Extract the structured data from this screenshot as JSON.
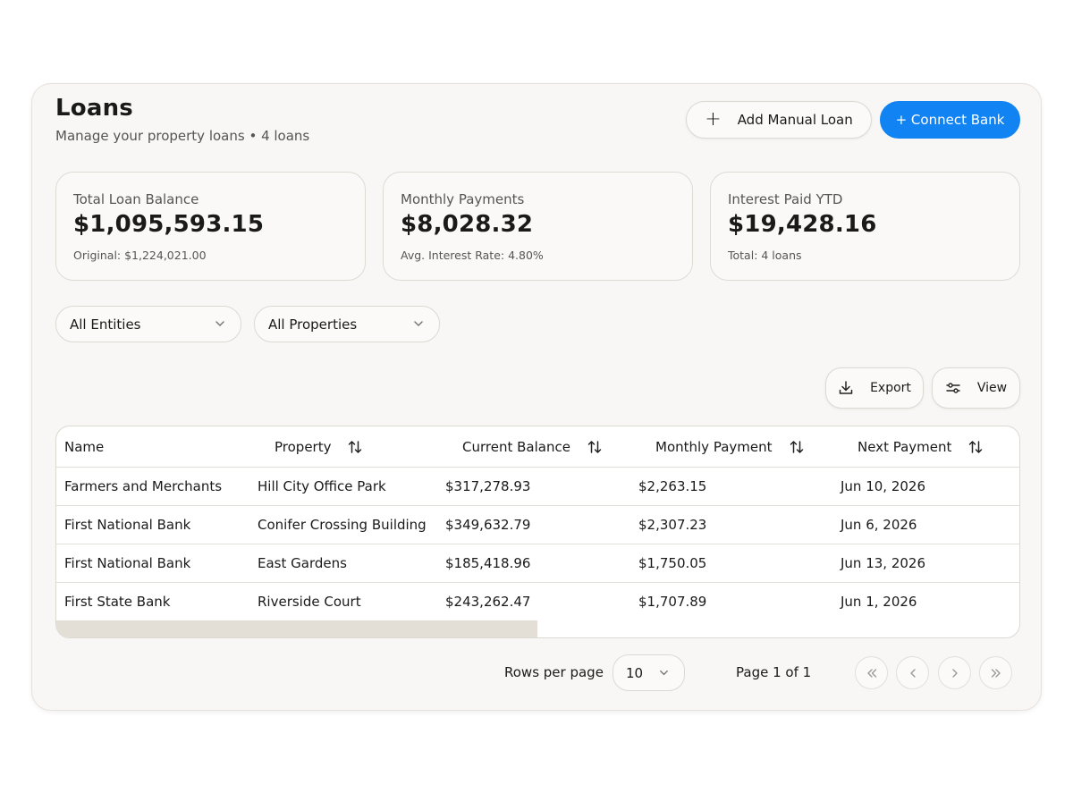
{
  "header": {
    "title": "Loans",
    "subtitle": "Manage your property loans • 4 loans",
    "add_loan_label": "Add Manual Loan",
    "connect_bank_label": "+ Connect Bank"
  },
  "stats": [
    {
      "label": "Total Loan Balance",
      "value": "$1,095,593.15",
      "sub": "Original: $1,224,021.00"
    },
    {
      "label": "Monthly Payments",
      "value": "$8,028.32",
      "sub": "Avg. Interest Rate: 4.80%"
    },
    {
      "label": "Interest Paid YTD",
      "value": "$19,428.16",
      "sub": "Total: 4 loans"
    }
  ],
  "filters": {
    "entities": "All Entities",
    "properties": "All Properties"
  },
  "toolbar": {
    "export_label": "Export",
    "view_label": "View"
  },
  "table": {
    "columns": [
      "Name",
      "Property",
      "Current Balance",
      "Monthly Payment",
      "Next Payment"
    ],
    "rows": [
      [
        "Farmers and Merchants",
        "Hill City Office Park",
        "$317,278.93",
        "$2,263.15",
        "Jun 10, 2026"
      ],
      [
        "First National Bank",
        "Conifer Crossing Building",
        "$349,632.79",
        "$2,307.23",
        "Jun 6, 2026"
      ],
      [
        "First National Bank",
        "East Gardens",
        "$185,418.96",
        "$1,750.05",
        "Jun 13, 2026"
      ],
      [
        "First State Bank",
        "Riverside Court",
        "$243,262.47",
        "$1,707.89",
        "Jun 1, 2026"
      ]
    ]
  },
  "pagination": {
    "rows_per_page_label": "Rows per page",
    "rows_per_page_value": "10",
    "page_info": "Page 1 of 1"
  },
  "colors": {
    "primary": "#1283f3",
    "card_background": "#f8f7f5",
    "scrollbar_thumb": "#e4dfd6"
  }
}
